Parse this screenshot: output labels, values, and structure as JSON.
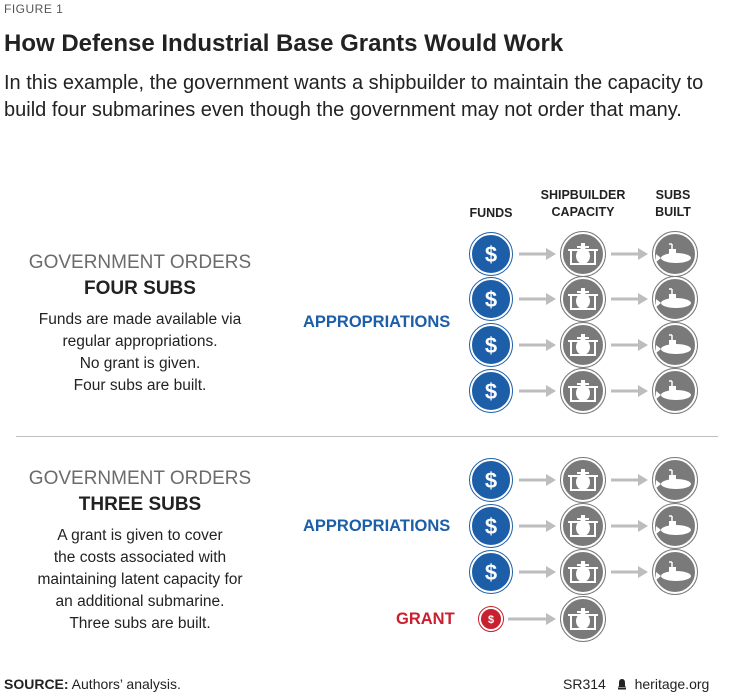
{
  "figure_label": "FIGURE 1",
  "title": "How Defense Industrial Base Grants Would Work",
  "subtitle": "In this example, the government wants a shipbuilder to maintain the capacity to build four submarines even though the government may not order that many.",
  "columns": {
    "funds": "FUNDS",
    "capacity_line1": "SHIPBUILDER",
    "capacity_line2": "CAPACITY",
    "subs_line1": "SUBS",
    "subs_line2": "BUILT"
  },
  "section1": {
    "title_light": "GOVERNMENT ORDERS",
    "title_bold": "FOUR SUBS",
    "desc": [
      "Funds are made available via",
      "regular appropriations.",
      "No grant is given.",
      "Four subs are built."
    ],
    "source_label": "APPROPRIATIONS",
    "rows": [
      {
        "funding": "appropriation",
        "capacity": true,
        "sub_built": true
      },
      {
        "funding": "appropriation",
        "capacity": true,
        "sub_built": true
      },
      {
        "funding": "appropriation",
        "capacity": true,
        "sub_built": true
      },
      {
        "funding": "appropriation",
        "capacity": true,
        "sub_built": true
      }
    ]
  },
  "section2": {
    "title_light": "GOVERNMENT ORDERS",
    "title_bold": "THREE SUBS",
    "desc": [
      "A grant is given to cover",
      "the costs associated with",
      "maintaining latent capacity for",
      "an additional submarine.",
      "Three subs are built."
    ],
    "source_label": "APPROPRIATIONS",
    "grant_label": "GRANT",
    "rows": [
      {
        "funding": "appropriation",
        "capacity": true,
        "sub_built": true
      },
      {
        "funding": "appropriation",
        "capacity": true,
        "sub_built": true
      },
      {
        "funding": "appropriation",
        "capacity": true,
        "sub_built": true
      },
      {
        "funding": "grant",
        "capacity": true,
        "sub_built": false
      }
    ]
  },
  "dollar_symbol": "$",
  "footer": {
    "source_label": "SOURCE:",
    "source_text": " Authors’ analysis.",
    "report_id": "SR314",
    "site": "heritage.org"
  },
  "colors": {
    "appropriation_blue": "#1d5ea8",
    "grant_red": "#c8202f",
    "node_gray": "#7a7a7a",
    "arrow_gray": "#bdbdbd",
    "label_blue": "#1d5ea8"
  },
  "icons": {
    "funds": "dollar-icon",
    "capacity": "shipyard-icon",
    "sub": "submarine-icon",
    "credit": "bell-icon"
  }
}
